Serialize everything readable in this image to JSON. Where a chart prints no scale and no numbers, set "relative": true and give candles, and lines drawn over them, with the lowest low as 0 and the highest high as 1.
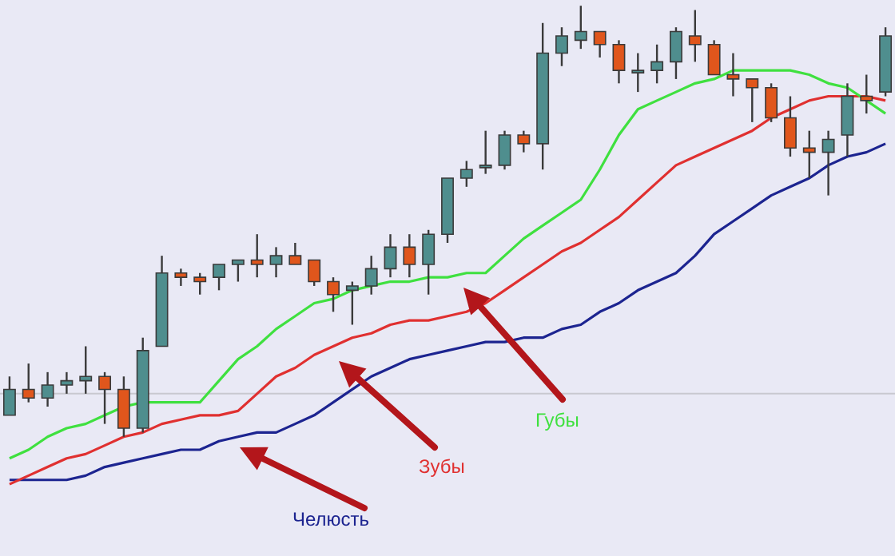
{
  "chart_data": {
    "type": "candlestick",
    "relative": true,
    "categories": [
      null,
      null,
      null,
      null,
      null,
      null,
      null,
      null,
      null,
      null,
      null,
      null,
      null,
      null,
      null,
      null,
      null,
      null,
      null,
      null,
      null,
      null,
      null,
      null,
      null,
      null,
      null,
      null,
      null,
      null,
      null,
      null,
      null,
      null,
      null,
      null,
      null,
      null,
      null,
      null,
      null,
      null,
      null,
      null,
      null,
      null,
      null
    ],
    "ohlc": [
      [
        0.05,
        0.14,
        0.05,
        0.11
      ],
      [
        0.11,
        0.17,
        0.08,
        0.09
      ],
      [
        0.09,
        0.15,
        0.07,
        0.12
      ],
      [
        0.12,
        0.15,
        0.1,
        0.13
      ],
      [
        0.13,
        0.21,
        0.1,
        0.14
      ],
      [
        0.14,
        0.15,
        0.03,
        0.11
      ],
      [
        0.11,
        0.14,
        0,
        0.02
      ],
      [
        0.02,
        0.23,
        0.01,
        0.2
      ],
      [
        0.21,
        0.42,
        0.21,
        0.38
      ],
      [
        0.38,
        0.39,
        0.35,
        0.37
      ],
      [
        0.37,
        0.38,
        0.33,
        0.36
      ],
      [
        0.37,
        0.4,
        0.34,
        0.4
      ],
      [
        0.4,
        0.41,
        0.36,
        0.41
      ],
      [
        0.41,
        0.47,
        0.37,
        0.4
      ],
      [
        0.4,
        0.44,
        0.37,
        0.42
      ],
      [
        0.42,
        0.45,
        0.4,
        0.4
      ],
      [
        0.41,
        0.41,
        0.35,
        0.36
      ],
      [
        0.36,
        0.37,
        0.29,
        0.33
      ],
      [
        0.34,
        0.36,
        0.26,
        0.35
      ],
      [
        0.35,
        0.42,
        0.33,
        0.39
      ],
      [
        0.39,
        0.47,
        0.37,
        0.44
      ],
      [
        0.44,
        0.47,
        0.37,
        0.4
      ],
      [
        0.4,
        0.48,
        0.33,
        0.47
      ],
      [
        0.47,
        0.6,
        0.45,
        0.6
      ],
      [
        0.6,
        0.64,
        0.58,
        0.62
      ],
      [
        0.63,
        0.71,
        0.61,
        0.63
      ],
      [
        0.63,
        0.71,
        0.62,
        0.7
      ],
      [
        0.7,
        0.71,
        0.66,
        0.68
      ],
      [
        0.68,
        0.96,
        0.62,
        0.89
      ],
      [
        0.89,
        0.95,
        0.86,
        0.93
      ],
      [
        0.92,
        1.0,
        0.9,
        0.94
      ],
      [
        0.94,
        0.94,
        0.88,
        0.91
      ],
      [
        0.91,
        0.92,
        0.82,
        0.85
      ],
      [
        0.85,
        0.89,
        0.8,
        0.85
      ],
      [
        0.85,
        0.91,
        0.82,
        0.87
      ],
      [
        0.87,
        0.95,
        0.83,
        0.94
      ],
      [
        0.93,
        0.99,
        0.87,
        0.91
      ],
      [
        0.91,
        0.92,
        0.84,
        0.84
      ],
      [
        0.84,
        0.89,
        0.79,
        0.83
      ],
      [
        0.83,
        0.83,
        0.73,
        0.81
      ],
      [
        0.81,
        0.82,
        0.73,
        0.74
      ],
      [
        0.74,
        0.79,
        0.65,
        0.67
      ],
      [
        0.67,
        0.71,
        0.6,
        0.66
      ],
      [
        0.66,
        0.71,
        0.56,
        0.69
      ],
      [
        0.7,
        0.82,
        0.65,
        0.79
      ],
      [
        0.79,
        0.84,
        0.75,
        0.78
      ],
      [
        0.8,
        0.95,
        0.79,
        0.93
      ]
    ],
    "colors": [
      "#4f8e8e",
      "#e0561c",
      "#4f8e8e",
      "#4f8e8e",
      "#4f8e8e",
      "#e0561c",
      "#e0561c",
      "#4f8e8e",
      "#4f8e8e",
      "#e0561c",
      "#e0561c",
      "#4f8e8e",
      "#4f8e8e",
      "#e0561c",
      "#4f8e8e",
      "#e0561c",
      "#e0561c",
      "#e0561c",
      "#4f8e8e",
      "#4f8e8e",
      "#4f8e8e",
      "#e0561c",
      "#4f8e8e",
      "#4f8e8e",
      "#4f8e8e",
      "#4f8e8e",
      "#4f8e8e",
      "#e0561c",
      "#4f8e8e",
      "#4f8e8e",
      "#4f8e8e",
      "#e0561c",
      "#e0561c",
      "#4f8e8e",
      "#4f8e8e",
      "#4f8e8e",
      "#e0561c",
      "#e0561c",
      "#e0561c",
      "#e0561c",
      "#e0561c",
      "#e0561c",
      "#e0561c",
      "#4f8e8e",
      "#4f8e8e",
      "#e0561c",
      "#4f8e8e"
    ],
    "series": [
      {
        "type": "line",
        "name": "Губы",
        "color": "#3fe03f",
        "values": [
          -0.05,
          -0.03,
          0,
          0.02,
          0.03,
          0.05,
          0.07,
          0.08,
          0.08,
          0.08,
          0.08,
          0.13,
          0.18,
          0.21,
          0.25,
          0.28,
          0.31,
          0.32,
          0.34,
          0.35,
          0.36,
          0.36,
          0.37,
          0.37,
          0.38,
          0.38,
          0.42,
          0.46,
          0.49,
          0.52,
          0.55,
          0.62,
          0.7,
          0.76,
          0.78,
          0.8,
          0.82,
          0.83,
          0.85,
          0.85,
          0.85,
          0.85,
          0.84,
          0.82,
          0.81,
          0.78,
          0.75
        ]
      },
      {
        "type": "line",
        "name": "Зубы",
        "color": "#e03030",
        "values": [
          -0.11,
          -0.09,
          -0.07,
          -0.05,
          -0.04,
          -0.02,
          0,
          0.01,
          0.03,
          0.04,
          0.05,
          0.05,
          0.06,
          0.1,
          0.14,
          0.16,
          0.19,
          0.21,
          0.23,
          0.24,
          0.26,
          0.27,
          0.27,
          0.28,
          0.29,
          0.31,
          0.34,
          0.37,
          0.4,
          0.43,
          0.45,
          0.48,
          0.51,
          0.55,
          0.59,
          0.63,
          0.65,
          0.67,
          0.69,
          0.71,
          0.74,
          0.76,
          0.78,
          0.79,
          0.79,
          0.79,
          0.78
        ]
      },
      {
        "type": "line",
        "name": "Челюсть",
        "color": "#1c2490",
        "values": [
          -0.1,
          -0.1,
          -0.1,
          -0.1,
          -0.09,
          -0.07,
          -0.06,
          -0.05,
          -0.04,
          -0.03,
          -0.03,
          -0.01,
          0,
          0.01,
          0.01,
          0.03,
          0.05,
          0.08,
          0.11,
          0.14,
          0.16,
          0.18,
          0.19,
          0.2,
          0.21,
          0.22,
          0.22,
          0.23,
          0.23,
          0.25,
          0.26,
          0.29,
          0.31,
          0.34,
          0.36,
          0.38,
          0.42,
          0.47,
          0.5,
          0.53,
          0.56,
          0.58,
          0.6,
          0.63,
          0.65,
          0.66,
          0.68
        ]
      }
    ],
    "ref_lines": [
      {
        "axis": "y",
        "value": 0.1,
        "color": "#c8c8d0"
      }
    ]
  }
}
